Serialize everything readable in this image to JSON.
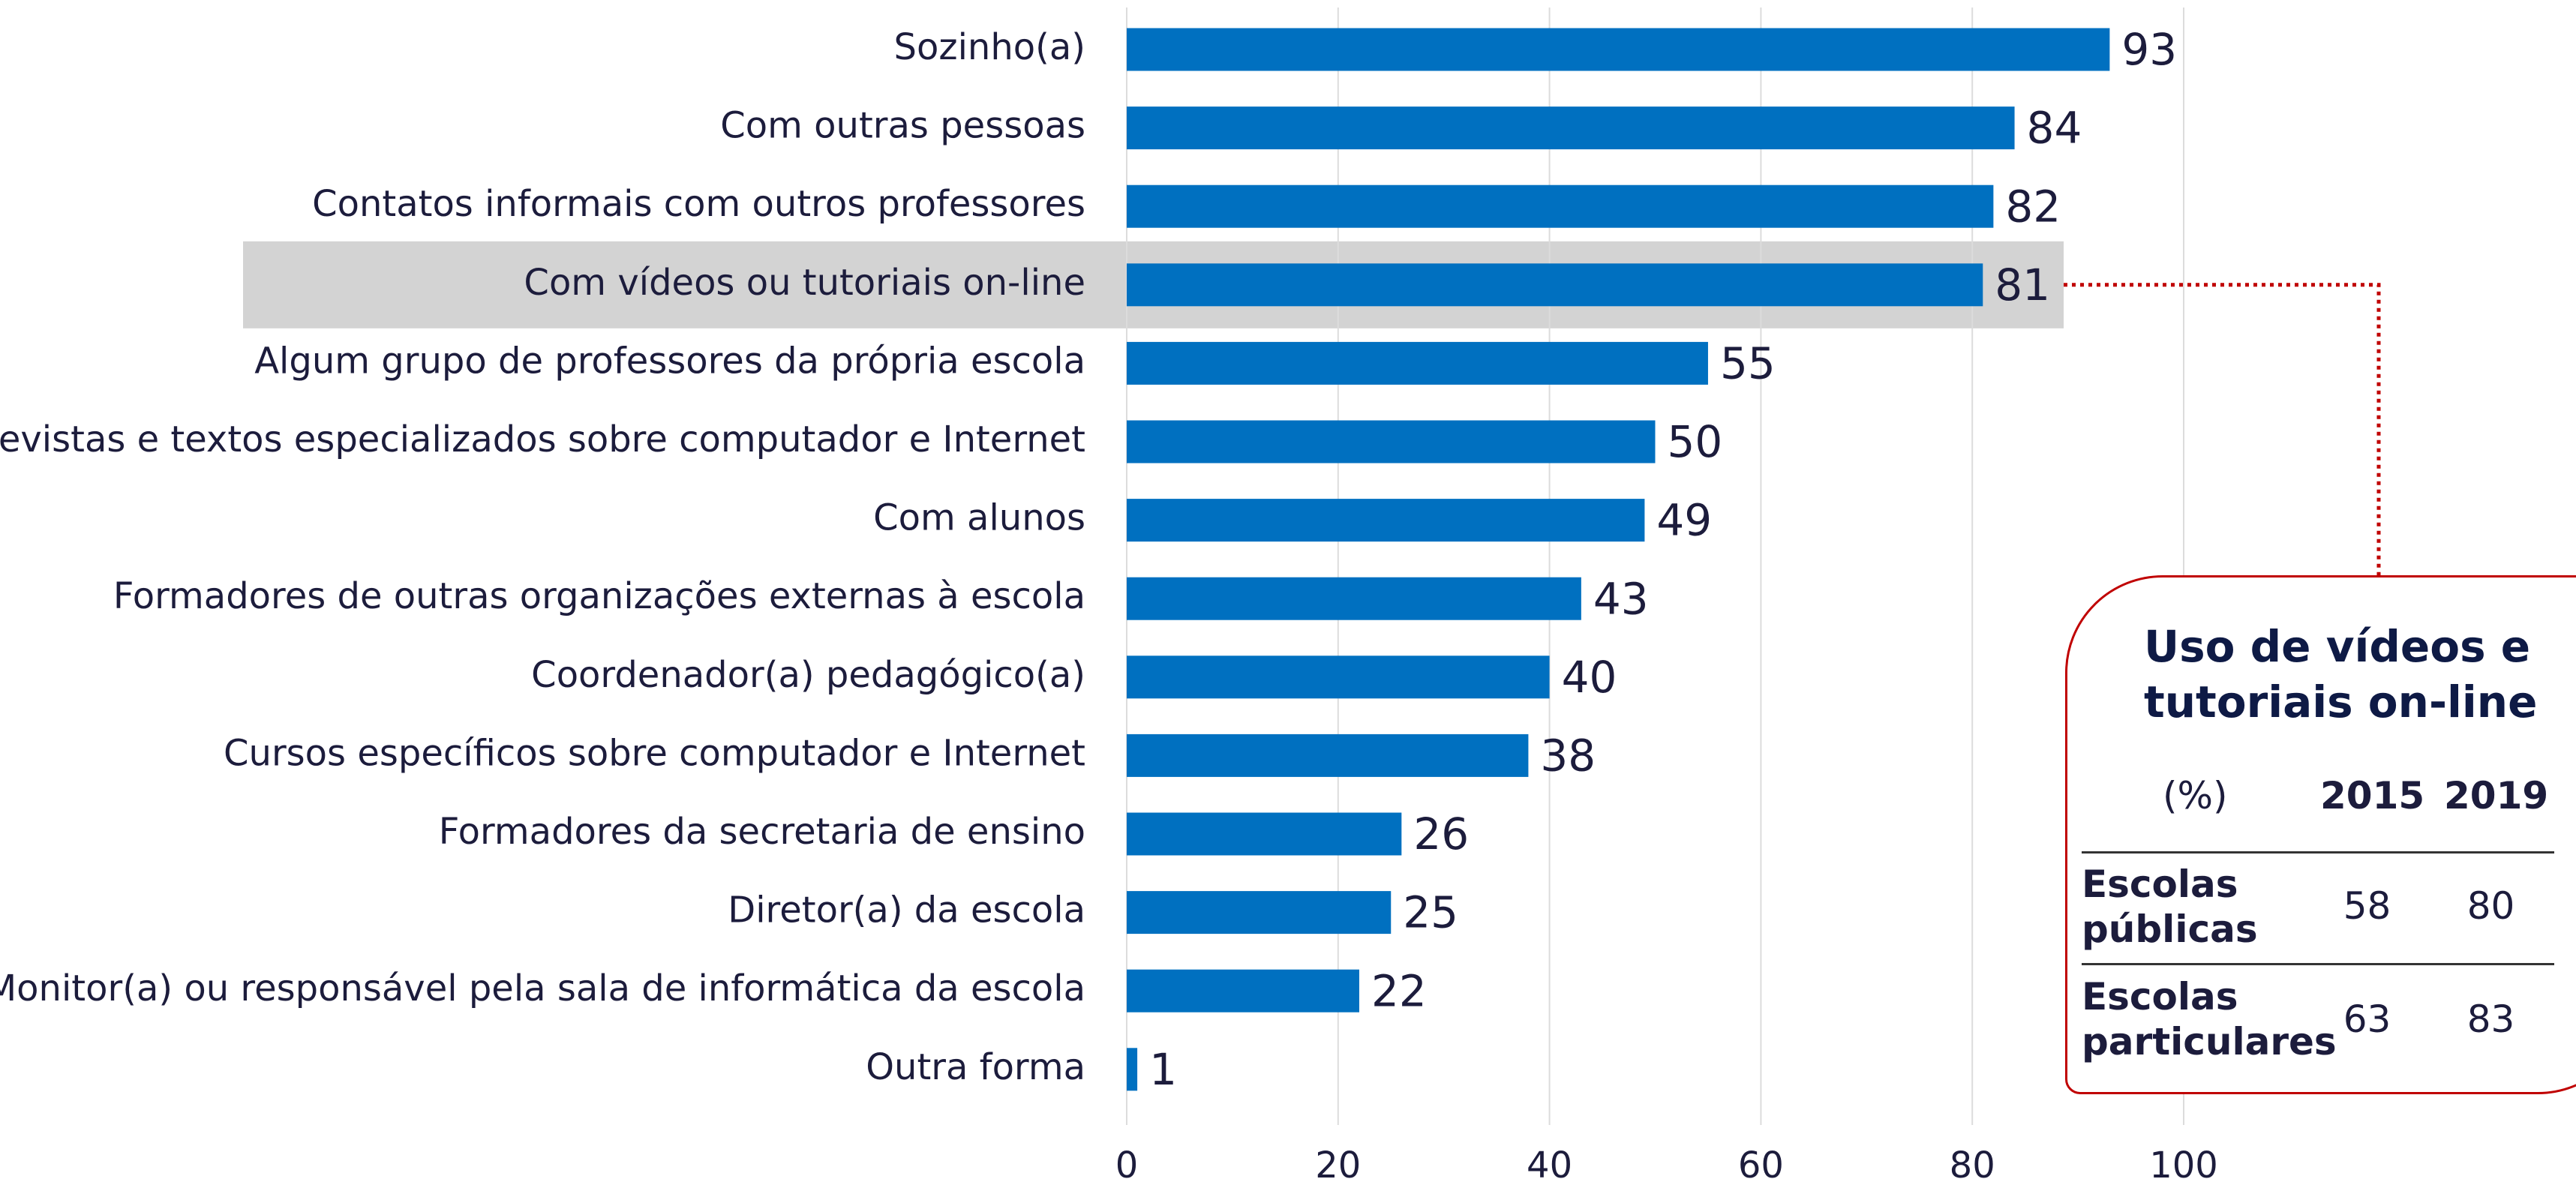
{
  "chart_data": {
    "type": "bar",
    "orientation": "horizontal",
    "categories": [
      "Sozinho(a)",
      "Com outras pessoas",
      "Contatos informais com outros professores",
      "Com vídeos ou tutoriais on-line",
      "Algum grupo de professores da própria escola",
      "Revistas e textos especializados sobre computador e Internet",
      "Com alunos",
      "Formadores de outras organizações externas à escola",
      "Coordenador(a) pedagógico(a)",
      "Cursos específicos sobre computador e Internet",
      "Formadores da secretaria de ensino",
      "Diretor(a) da escola",
      "Monitor(a) ou responsável pela sala de informática da escola",
      "Outra forma"
    ],
    "values": [
      93,
      84,
      82,
      81,
      55,
      50,
      49,
      43,
      40,
      38,
      26,
      25,
      22,
      1
    ],
    "color": "#0070c0",
    "highlight": 3,
    "xlim": [
      0,
      100
    ],
    "xticks": [
      0,
      20,
      40,
      60,
      80,
      100
    ],
    "grid": true
  },
  "inset": {
    "title": "Uso de vídeos e tutoriais on-line",
    "header": [
      "(%)",
      "2015",
      "2019"
    ],
    "rows": [
      [
        "Escolas públicas",
        "58",
        "80"
      ],
      [
        "Escolas particulares",
        "63",
        "83"
      ]
    ]
  }
}
